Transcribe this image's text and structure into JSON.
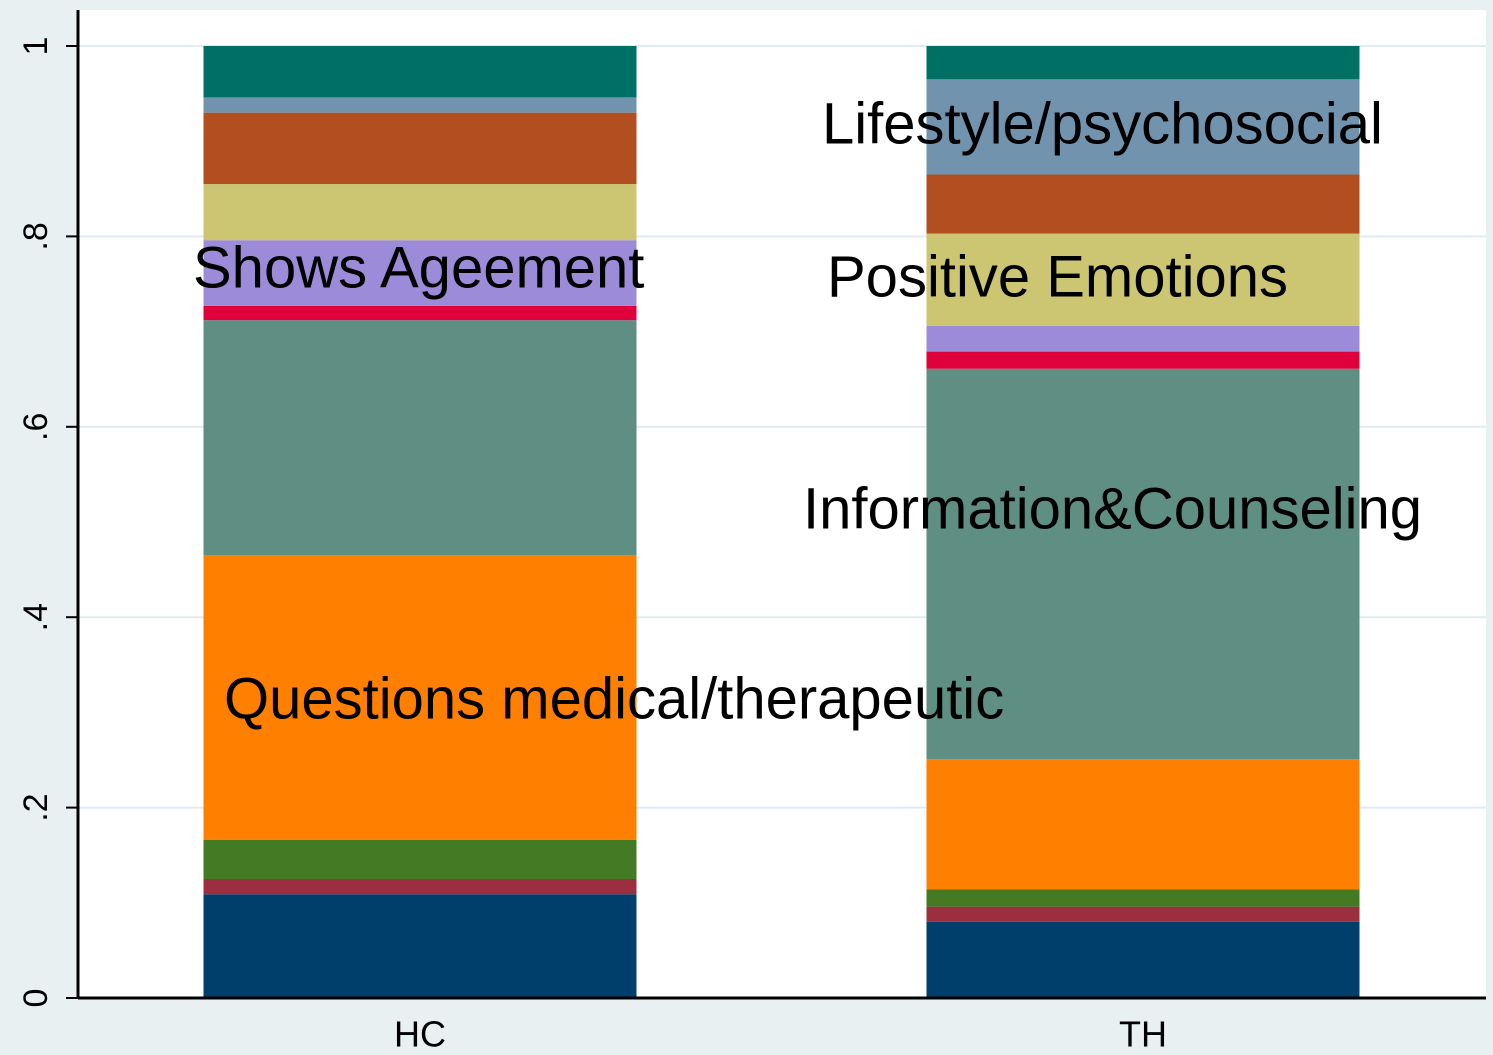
{
  "chart_data": {
    "type": "stacked_bar",
    "categories": [
      "HC",
      "TH"
    ],
    "series": [
      {
        "color": "#003f6b",
        "values": [
          0.109,
          0.08
        ]
      },
      {
        "color": "#9b2f3f",
        "values": [
          0.016,
          0.016
        ]
      },
      {
        "color": "#457a24",
        "values": [
          0.041,
          0.018
        ]
      },
      {
        "color": "#ff7f00",
        "values": [
          0.299,
          0.137
        ]
      },
      {
        "color": "#5f8f82",
        "values": [
          0.247,
          0.41
        ]
      },
      {
        "color": "#e0003c",
        "values": [
          0.015,
          0.018
        ]
      },
      {
        "color": "#9b8bd8",
        "values": [
          0.069,
          0.027
        ]
      },
      {
        "color": "#ccc572",
        "values": [
          0.059,
          0.097
        ]
      },
      {
        "color": "#b24e20",
        "values": [
          0.075,
          0.062
        ]
      },
      {
        "color": "#7193ae",
        "values": [
          0.016,
          0.1
        ]
      },
      {
        "color": "#006f64",
        "values": [
          0.054,
          0.035
        ]
      }
    ],
    "annotations": [
      "Lifestyle/psychosocial",
      "Shows Ageement",
      "Positive Emotions",
      "Information&Counseling",
      "Questions medical/therapeutic"
    ],
    "ylim": [
      0,
      1
    ],
    "yticks": [
      0,
      {
        "value": 0.2,
        "label": ".2"
      },
      {
        "value": 0.4,
        "label": ".4"
      },
      {
        "value": 0.6,
        "label": ".6"
      },
      {
        "value": 0.8,
        "label": ".8"
      },
      1
    ],
    "grid": true
  }
}
